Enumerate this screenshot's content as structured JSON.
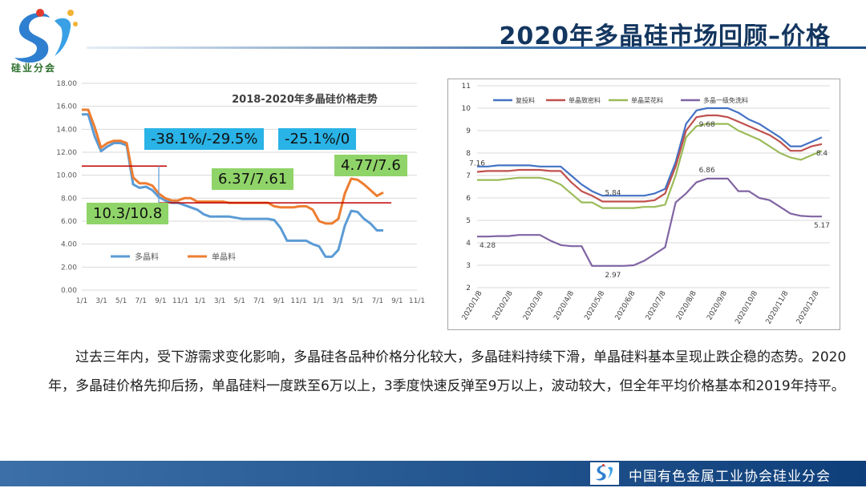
{
  "header": {
    "logo_text": "硅业分会",
    "title": "2020年多晶硅市场回顾–价格"
  },
  "colors": {
    "header_blue": "#13365f",
    "blue_line": "#5b9bd5",
    "orange_line": "#ed7d31",
    "red_line": "#c00000",
    "ann_blue": "#2ab3e6",
    "ann_green": "#8fd468"
  },
  "annotations": {
    "a1": "-38.1%/-29.5%",
    "a2": "-25.1%/0",
    "a3": "4.77/7.6",
    "a4": "6.37/7.61",
    "a5": "10.3/10.8"
  },
  "body": {
    "paragraph": "过去三年内，受下游需求变化影响，多晶硅各品种价格分化较大，多晶硅料持续下滑，单晶硅料基本呈现止跌企稳的态势。2020年，多晶硅价格先抑后扬，单晶硅料一度跌至6万以上，3季度快速反弹至9万以上，波动较大，但全年平均价格基本和2019年持平。"
  },
  "footer": {
    "org": "中国有色金属工业协会硅业分会"
  },
  "chart_data": [
    {
      "type": "line",
      "title": "2018-2020年多晶硅价格走势",
      "ylim": [
        0,
        18
      ],
      "yticks": [
        "0.00",
        "2.00",
        "4.00",
        "6.00",
        "8.00",
        "10.00",
        "12.00",
        "14.00",
        "16.00",
        "18.00"
      ],
      "xticks": [
        "1/1",
        "3/1",
        "5/1",
        "7/1",
        "9/1",
        "11/1",
        "1/1",
        "3/1",
        "5/1",
        "7/1",
        "9/1",
        "11/1",
        "1/1",
        "3/1",
        "5/1",
        "7/1",
        "9/1",
        "11/1"
      ],
      "legend": "bottom-left",
      "series": [
        {
          "name": "多晶料",
          "color": "#5b9bd5",
          "values": [
            15.3,
            15.3,
            13.4,
            12.1,
            12.5,
            12.8,
            12.8,
            12.6,
            9.2,
            8.9,
            9.0,
            8.7,
            8.1,
            7.8,
            7.6,
            7.6,
            7.4,
            7.2,
            7.0,
            6.6,
            6.4,
            6.4,
            6.4,
            6.4,
            6.3,
            6.2,
            6.2,
            6.2,
            6.2,
            6.2,
            6.1,
            5.4,
            4.3,
            4.3,
            4.3,
            4.3,
            4.0,
            3.8,
            2.9,
            2.9,
            3.5,
            5.6,
            6.9,
            6.8,
            6.2,
            5.8,
            5.2,
            5.2
          ]
        },
        {
          "name": "单晶料",
          "color": "#ed7d31",
          "values": [
            15.7,
            15.7,
            14.2,
            12.4,
            12.8,
            13.0,
            13.0,
            12.8,
            9.8,
            9.3,
            9.3,
            9.1,
            8.4,
            8.0,
            7.8,
            7.8,
            8.0,
            8.0,
            7.7,
            7.7,
            7.7,
            7.7,
            7.7,
            7.6,
            7.6,
            7.6,
            7.6,
            7.6,
            7.6,
            7.6,
            7.3,
            7.2,
            7.2,
            7.2,
            7.3,
            7.3,
            7.0,
            6.0,
            5.8,
            5.8,
            6.2,
            8.4,
            9.7,
            9.6,
            9.2,
            8.7,
            8.2,
            8.5
          ]
        }
      ],
      "ref_lines": [
        {
          "color": "#c00000",
          "value": 10.8,
          "from": 0,
          "to": 12
        },
        {
          "color": "#c00000",
          "value": 7.6,
          "from": 12,
          "to": 47
        }
      ]
    },
    {
      "type": "line",
      "ylim": [
        2,
        11
      ],
      "yticks": [
        "2",
        "3",
        "4",
        "5",
        "6",
        "7",
        "8",
        "9",
        "10",
        "11"
      ],
      "xticks": [
        "2020/1/8",
        "2020/2/8",
        "2020/3/8",
        "2020/4/8",
        "2020/5/8",
        "2020/6/8",
        "2020/7/8",
        "2020/8/8",
        "2020/9/8",
        "2020/10/8",
        "2020/11/8",
        "2020/12/8"
      ],
      "legend": "top",
      "series": [
        {
          "name": "复投料",
          "color": "#4472c4",
          "values": [
            7.4,
            7.4,
            7.45,
            7.45,
            7.45,
            7.45,
            7.4,
            7.4,
            7.4,
            7.0,
            6.6,
            6.3,
            6.1,
            6.1,
            6.1,
            6.1,
            6.1,
            6.2,
            6.4,
            7.6,
            9.3,
            9.9,
            10.0,
            10.0,
            10.0,
            9.8,
            9.5,
            9.3,
            9.0,
            8.7,
            8.3,
            8.3,
            8.5,
            8.7
          ]
        },
        {
          "name": "单晶致密料",
          "color": "#c0504d",
          "values": [
            7.16,
            7.2,
            7.2,
            7.2,
            7.25,
            7.25,
            7.25,
            7.2,
            7.2,
            6.7,
            6.3,
            6.1,
            5.84,
            5.84,
            5.84,
            5.84,
            5.84,
            5.9,
            6.2,
            7.4,
            9.0,
            9.6,
            9.68,
            9.68,
            9.6,
            9.4,
            9.2,
            9.0,
            8.8,
            8.5,
            8.1,
            8.1,
            8.3,
            8.4
          ]
        },
        {
          "name": "单晶菜花料",
          "color": "#9bbb59",
          "values": [
            6.8,
            6.8,
            6.8,
            6.85,
            6.9,
            6.9,
            6.9,
            6.8,
            6.6,
            6.2,
            5.8,
            5.8,
            5.55,
            5.55,
            5.55,
            5.55,
            5.6,
            5.6,
            5.7,
            7.0,
            8.7,
            9.2,
            9.3,
            9.3,
            9.3,
            9.0,
            8.8,
            8.6,
            8.3,
            8.0,
            7.8,
            7.7,
            7.9,
            8.1
          ]
        },
        {
          "name": "多晶一级免洗料",
          "color": "#8064a2",
          "values": [
            4.28,
            4.28,
            4.3,
            4.3,
            4.35,
            4.35,
            4.35,
            4.1,
            3.9,
            3.85,
            3.85,
            2.97,
            2.97,
            2.97,
            2.97,
            3.0,
            3.2,
            3.5,
            3.8,
            5.8,
            6.2,
            6.7,
            6.86,
            6.86,
            6.86,
            6.3,
            6.3,
            6.0,
            5.9,
            5.6,
            5.3,
            5.2,
            5.17,
            5.17
          ]
        }
      ],
      "data_labels": [
        {
          "text": "7.16",
          "series": 1,
          "index": 0,
          "pos": "above"
        },
        {
          "text": "5.84",
          "series": 1,
          "index": 13,
          "pos": "above"
        },
        {
          "text": "9.68",
          "series": 1,
          "index": 22,
          "pos": "below"
        },
        {
          "text": "8.4",
          "series": 1,
          "index": 33,
          "pos": "below"
        },
        {
          "text": "4.28",
          "series": 3,
          "index": 1,
          "pos": "below"
        },
        {
          "text": "2.97",
          "series": 3,
          "index": 13,
          "pos": "below"
        },
        {
          "text": "6.86",
          "series": 3,
          "index": 22,
          "pos": "above"
        },
        {
          "text": "5.17",
          "series": 3,
          "index": 33,
          "pos": "below"
        }
      ]
    }
  ]
}
